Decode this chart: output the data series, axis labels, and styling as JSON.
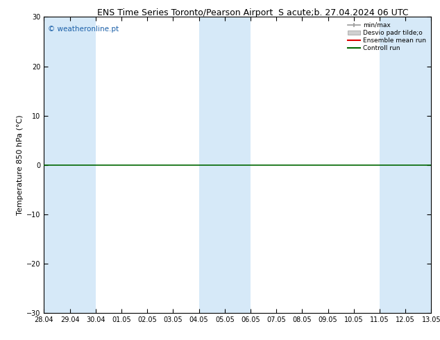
{
  "title_left": "ENS Time Series Toronto/Pearson Airport",
  "title_right": "S acute;b. 27.04.2024 06 UTC",
  "ylabel": "Temperature 850 hPa (°C)",
  "ylim": [
    -30,
    30
  ],
  "yticks": [
    -30,
    -20,
    -10,
    0,
    10,
    20,
    30
  ],
  "xtick_labels": [
    "28.04",
    "29.04",
    "30.04",
    "01.05",
    "02.05",
    "03.05",
    "04.05",
    "05.05",
    "06.05",
    "07.05",
    "08.05",
    "09.05",
    "10.05",
    "11.05",
    "12.05",
    "13.05"
  ],
  "watermark": "© weatheronline.pt",
  "bg_color": "#ffffff",
  "plot_bg_color": "#ffffff",
  "shade_color": "#d6e9f8",
  "shade_alpha": 1.0,
  "legend_labels": [
    "min/max",
    "Desvio padr tilde;o",
    "Ensemble mean run",
    "Controll run"
  ],
  "zero_line_color": "#006600",
  "title_fontsize": 9,
  "tick_fontsize": 7,
  "ylabel_fontsize": 8,
  "shade_cols": [
    0,
    1,
    6,
    7,
    13,
    14
  ]
}
